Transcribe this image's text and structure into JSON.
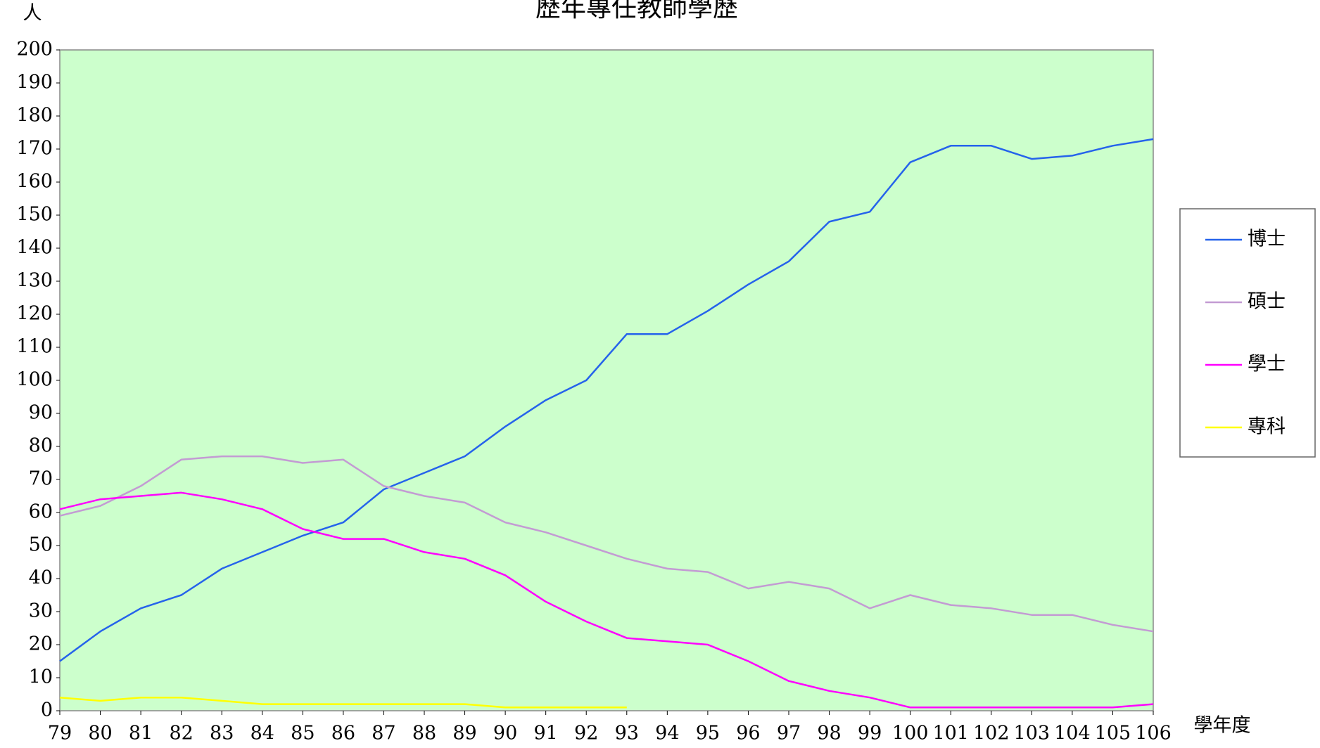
{
  "chart_data": {
    "type": "line",
    "title": "歷年專任教師學歷",
    "y_label": "人",
    "x_label": "學年度",
    "categories": [
      "79",
      "80",
      "81",
      "82",
      "83",
      "84",
      "85",
      "86",
      "87",
      "88",
      "89",
      "90",
      "91",
      "92",
      "93",
      "94",
      "95",
      "96",
      "97",
      "98",
      "99",
      "100",
      "101",
      "102",
      "103",
      "104",
      "105",
      "106"
    ],
    "series": [
      {
        "name": "博士",
        "color": "#2563eb",
        "values": [
          15,
          24,
          31,
          35,
          43,
          48,
          53,
          57,
          67,
          72,
          77,
          86,
          94,
          100,
          114,
          114,
          121,
          129,
          136,
          148,
          151,
          166,
          171,
          171,
          167,
          168,
          171,
          173
        ]
      },
      {
        "name": "碩士",
        "color": "#c39bd3",
        "values": [
          59,
          62,
          68,
          76,
          77,
          77,
          75,
          76,
          68,
          65,
          63,
          57,
          54,
          50,
          46,
          43,
          42,
          37,
          39,
          37,
          31,
          35,
          32,
          31,
          29,
          29,
          26,
          24
        ]
      },
      {
        "name": "學士",
        "color": "#ff00ff",
        "values": [
          61,
          64,
          65,
          66,
          64,
          61,
          55,
          52,
          52,
          48,
          46,
          41,
          33,
          27,
          22,
          21,
          20,
          15,
          9,
          6,
          4,
          1,
          1,
          1,
          1,
          1,
          1,
          2
        ]
      },
      {
        "name": "專科",
        "color": "#ffff00",
        "values": [
          4,
          3,
          4,
          4,
          3,
          2,
          2,
          2,
          2,
          2,
          2,
          1,
          1,
          1,
          1,
          null,
          null,
          null,
          null,
          null,
          null,
          null,
          null,
          null,
          null,
          null,
          null,
          null
        ]
      }
    ],
    "ylim": [
      0,
      200
    ],
    "yticks": [
      0,
      10,
      20,
      30,
      40,
      50,
      60,
      70,
      80,
      90,
      100,
      110,
      120,
      130,
      140,
      150,
      160,
      170,
      180,
      190,
      200
    ],
    "legend": "right"
  }
}
